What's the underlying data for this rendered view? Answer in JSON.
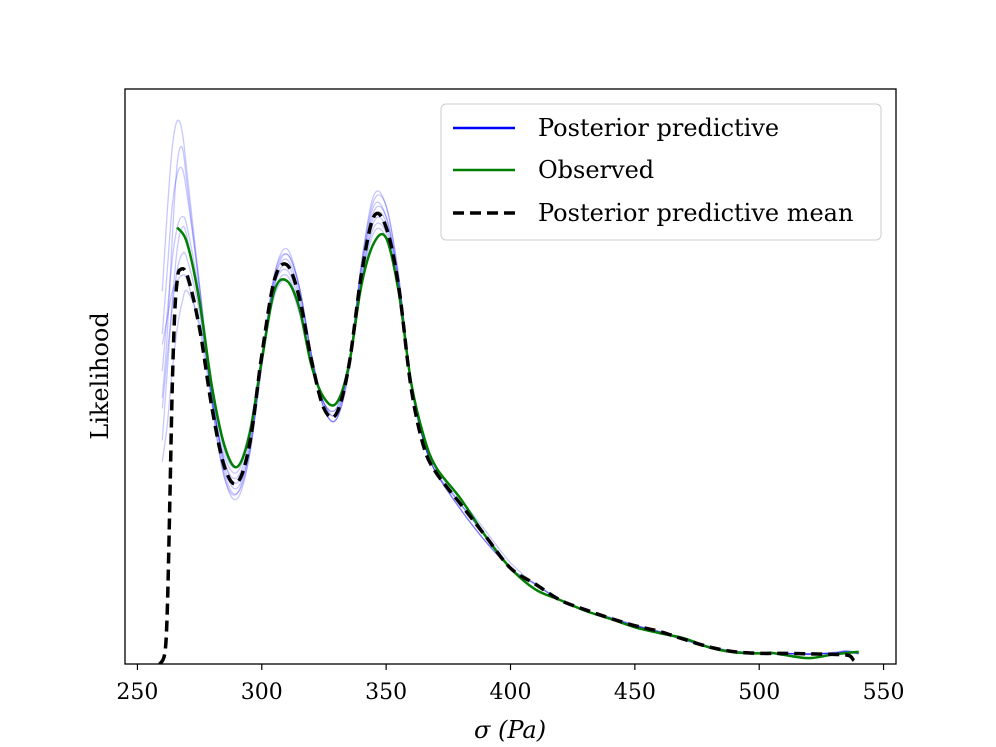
{
  "chart_data": {
    "type": "line",
    "xlabel": "σ (Pa)",
    "ylabel": "Likelihood",
    "xlim": [
      245,
      555
    ],
    "ylim": [
      0,
      1.08
    ],
    "xticks": [
      250,
      300,
      350,
      400,
      450,
      500,
      550
    ],
    "grid": false,
    "legend_position": "top-right",
    "legend": [
      {
        "label": "Posterior predictive",
        "color": "#0000ff",
        "style": "solid"
      },
      {
        "label": "Observed",
        "color": "#008000",
        "style": "solid"
      },
      {
        "label": "Posterior predictive mean",
        "color": "#000000",
        "style": "dashed"
      }
    ],
    "series": [
      {
        "name": "Observed",
        "color": "#008000",
        "x": [
          266,
          270,
          275,
          280,
          285,
          290,
          295,
          300,
          305,
          310,
          315,
          320,
          325,
          330,
          335,
          340,
          345,
          350,
          355,
          360,
          365,
          370,
          380,
          390,
          400,
          410,
          420,
          430,
          440,
          450,
          460,
          470,
          480,
          490,
          500,
          505,
          510,
          520,
          530,
          540
        ],
        "y": [
          0.82,
          0.79,
          0.68,
          0.52,
          0.41,
          0.37,
          0.43,
          0.57,
          0.7,
          0.72,
          0.67,
          0.56,
          0.5,
          0.49,
          0.56,
          0.71,
          0.79,
          0.8,
          0.7,
          0.53,
          0.43,
          0.37,
          0.31,
          0.24,
          0.18,
          0.14,
          0.12,
          0.1,
          0.085,
          0.069,
          0.058,
          0.048,
          0.031,
          0.022,
          0.02,
          0.021,
          0.017,
          0.011,
          0.018,
          0.023
        ]
      },
      {
        "name": "Posterior predictive mean",
        "color": "#000000",
        "x": [
          259,
          261,
          262,
          263,
          264,
          265,
          266,
          267,
          270,
          275,
          280,
          285,
          290,
          295,
          300,
          305,
          310,
          315,
          320,
          325,
          330,
          335,
          340,
          345,
          350,
          355,
          360,
          365,
          370,
          380,
          390,
          400,
          410,
          420,
          430,
          440,
          450,
          460,
          470,
          480,
          490,
          500,
          510,
          520,
          530,
          536,
          538,
          540
        ],
        "y": [
          0.0,
          0.02,
          0.1,
          0.3,
          0.52,
          0.66,
          0.72,
          0.74,
          0.73,
          0.63,
          0.48,
          0.37,
          0.34,
          0.41,
          0.58,
          0.72,
          0.75,
          0.69,
          0.57,
          0.48,
          0.47,
          0.56,
          0.73,
          0.84,
          0.82,
          0.71,
          0.52,
          0.41,
          0.36,
          0.3,
          0.24,
          0.18,
          0.15,
          0.12,
          0.102,
          0.086,
          0.072,
          0.061,
          0.046,
          0.032,
          0.023,
          0.02,
          0.02,
          0.019,
          0.018,
          0.016,
          0.007,
          0.0
        ]
      }
    ],
    "posterior_samples": {
      "name": "Posterior predictive",
      "color": "#0000ff",
      "x": [
        260,
        262,
        264,
        266,
        268,
        270,
        275,
        280,
        285,
        290,
        295,
        300,
        305,
        310,
        315,
        320,
        325,
        330,
        335,
        340,
        345,
        350,
        355,
        360,
        365,
        370,
        380,
        390,
        400,
        410,
        420,
        430,
        440,
        450,
        460,
        470,
        480,
        490,
        500,
        510,
        520,
        530,
        535,
        540
      ],
      "samples": [
        [
          0.42,
          0.55,
          0.68,
          0.78,
          0.82,
          0.8,
          0.67,
          0.5,
          0.38,
          0.34,
          0.41,
          0.57,
          0.72,
          0.76,
          0.7,
          0.58,
          0.49,
          0.47,
          0.56,
          0.74,
          0.86,
          0.84,
          0.72,
          0.53,
          0.42,
          0.36,
          0.3,
          0.24,
          0.18,
          0.15,
          0.12,
          0.1,
          0.086,
          0.072,
          0.06,
          0.046,
          0.032,
          0.023,
          0.02,
          0.02,
          0.019,
          0.021,
          0.023,
          0.02
        ],
        [
          0.5,
          0.62,
          0.8,
          0.94,
          0.97,
          0.9,
          0.7,
          0.49,
          0.35,
          0.31,
          0.39,
          0.57,
          0.73,
          0.78,
          0.71,
          0.58,
          0.48,
          0.46,
          0.56,
          0.75,
          0.88,
          0.86,
          0.73,
          0.53,
          0.42,
          0.36,
          0.29,
          0.23,
          0.18,
          0.14,
          0.12,
          0.1,
          0.085,
          0.072,
          0.06,
          0.045,
          0.031,
          0.023,
          0.02,
          0.02,
          0.018,
          0.02,
          0.024,
          0.021
        ],
        [
          0.6,
          0.65,
          0.7,
          0.72,
          0.73,
          0.72,
          0.63,
          0.49,
          0.39,
          0.36,
          0.43,
          0.58,
          0.7,
          0.73,
          0.67,
          0.56,
          0.49,
          0.48,
          0.56,
          0.71,
          0.81,
          0.8,
          0.7,
          0.53,
          0.43,
          0.37,
          0.31,
          0.24,
          0.18,
          0.15,
          0.12,
          0.1,
          0.088,
          0.073,
          0.061,
          0.047,
          0.033,
          0.024,
          0.021,
          0.02,
          0.019,
          0.021,
          0.022,
          0.019
        ],
        [
          0.38,
          0.45,
          0.55,
          0.63,
          0.68,
          0.7,
          0.64,
          0.51,
          0.4,
          0.37,
          0.44,
          0.58,
          0.69,
          0.72,
          0.66,
          0.56,
          0.5,
          0.49,
          0.57,
          0.72,
          0.82,
          0.81,
          0.71,
          0.52,
          0.42,
          0.37,
          0.31,
          0.25,
          0.19,
          0.15,
          0.12,
          0.1,
          0.087,
          0.073,
          0.061,
          0.047,
          0.033,
          0.024,
          0.021,
          0.02,
          0.019,
          0.02,
          0.022,
          0.019
        ],
        [
          0.7,
          0.85,
          0.97,
          1.02,
          1.0,
          0.92,
          0.71,
          0.49,
          0.35,
          0.32,
          0.4,
          0.57,
          0.73,
          0.77,
          0.71,
          0.58,
          0.48,
          0.46,
          0.55,
          0.75,
          0.87,
          0.86,
          0.73,
          0.53,
          0.42,
          0.36,
          0.3,
          0.24,
          0.18,
          0.14,
          0.12,
          0.1,
          0.085,
          0.071,
          0.059,
          0.045,
          0.031,
          0.022,
          0.019,
          0.019,
          0.018,
          0.022,
          0.025,
          0.021
        ],
        [
          0.55,
          0.66,
          0.76,
          0.82,
          0.84,
          0.82,
          0.69,
          0.51,
          0.37,
          0.33,
          0.4,
          0.56,
          0.71,
          0.75,
          0.69,
          0.57,
          0.49,
          0.47,
          0.56,
          0.73,
          0.84,
          0.83,
          0.72,
          0.53,
          0.42,
          0.36,
          0.29,
          0.23,
          0.18,
          0.14,
          0.12,
          0.1,
          0.086,
          0.072,
          0.06,
          0.046,
          0.032,
          0.023,
          0.02,
          0.02,
          0.019,
          0.02,
          0.023,
          0.02
        ],
        [
          0.48,
          0.58,
          0.67,
          0.74,
          0.77,
          0.76,
          0.66,
          0.5,
          0.38,
          0.35,
          0.42,
          0.58,
          0.71,
          0.74,
          0.68,
          0.57,
          0.49,
          0.48,
          0.56,
          0.72,
          0.83,
          0.82,
          0.71,
          0.53,
          0.42,
          0.37,
          0.3,
          0.24,
          0.18,
          0.15,
          0.12,
          0.1,
          0.087,
          0.072,
          0.06,
          0.046,
          0.032,
          0.023,
          0.02,
          0.02,
          0.019,
          0.02,
          0.023,
          0.02
        ],
        [
          0.62,
          0.74,
          0.86,
          0.92,
          0.93,
          0.88,
          0.71,
          0.51,
          0.36,
          0.32,
          0.39,
          0.56,
          0.72,
          0.77,
          0.71,
          0.58,
          0.48,
          0.46,
          0.55,
          0.74,
          0.85,
          0.84,
          0.72,
          0.53,
          0.42,
          0.36,
          0.29,
          0.23,
          0.18,
          0.14,
          0.12,
          0.1,
          0.085,
          0.071,
          0.059,
          0.045,
          0.031,
          0.022,
          0.019,
          0.02,
          0.018,
          0.021,
          0.024,
          0.021
        ]
      ]
    }
  }
}
